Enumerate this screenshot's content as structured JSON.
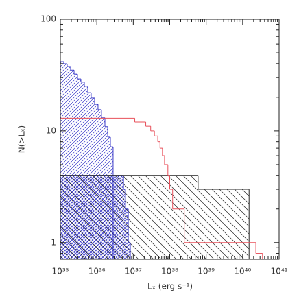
{
  "chart_data": {
    "type": "step",
    "x_label": "Lₓ (erg s⁻¹)",
    "y_label": "N(>Lₓ)",
    "log_x": true,
    "log_y": true,
    "xlim": [
      1e+35,
      1e+41
    ],
    "ylim": [
      0.71,
      100
    ],
    "xticks": [
      {
        "value": 1e+35,
        "label": "10³⁵"
      },
      {
        "value": 1e+36,
        "label": "10³⁶"
      },
      {
        "value": 1e+37,
        "label": "10³⁷"
      },
      {
        "value": 1e+38,
        "label": "10³⁸"
      },
      {
        "value": 1e+39,
        "label": "10³⁹"
      },
      {
        "value": 1e+40,
        "label": "10⁴⁰"
      },
      {
        "value": 1e+41,
        "label": "10⁴¹"
      }
    ],
    "yticks": [
      1,
      10,
      100
    ],
    "series": [
      {
        "color": "#3a3ac8",
        "hatch": "/",
        "bins": [
          1e+35,
          1.24e+35,
          1.54e+35,
          1.91e+35,
          2.38e+35,
          2.95e+35,
          3.66e+35,
          4.55e+35,
          5.65e+35,
          7e+35,
          8.7e+35,
          1.08e+36,
          1.34e+36,
          1.67e+36,
          1.99e+36,
          2.36e+36,
          2.8e+36
        ],
        "values": [
          41.6,
          39.9,
          37.7,
          35.0,
          32.2,
          29.2,
          27.3,
          25.1,
          22.0,
          19.7,
          17.3,
          15.5,
          13.1,
          10.9,
          8.8,
          7.2
        ]
      },
      {
        "color": "#3a3ac8",
        "hatch": "x",
        "bins": [
          1e+35,
          5.4e+36,
          6.1e+36,
          7.3e+36,
          8.3e+36
        ],
        "values": [
          4,
          3,
          2,
          1
        ]
      },
      {
        "color": "#222222",
        "hatch": "\\",
        "bins": [
          1e+35,
          6e+38,
          1.5e+40
        ],
        "values": [
          4,
          3
        ]
      },
      {
        "color": "#e8505a",
        "bins": [
          1e+35,
          1.1e+37,
          2.2e+37,
          3e+37,
          3.8e+37,
          4.7e+37,
          5.4e+37,
          6.3e+37,
          7.2e+37,
          8.9e+37,
          1e+38,
          1.2e+38,
          2.5e+38,
          2.3e+40,
          3.5e+40
        ],
        "values": [
          13,
          12,
          11,
          10,
          9,
          8,
          7,
          6,
          5,
          4,
          3,
          2,
          1,
          0.8
        ]
      }
    ]
  }
}
